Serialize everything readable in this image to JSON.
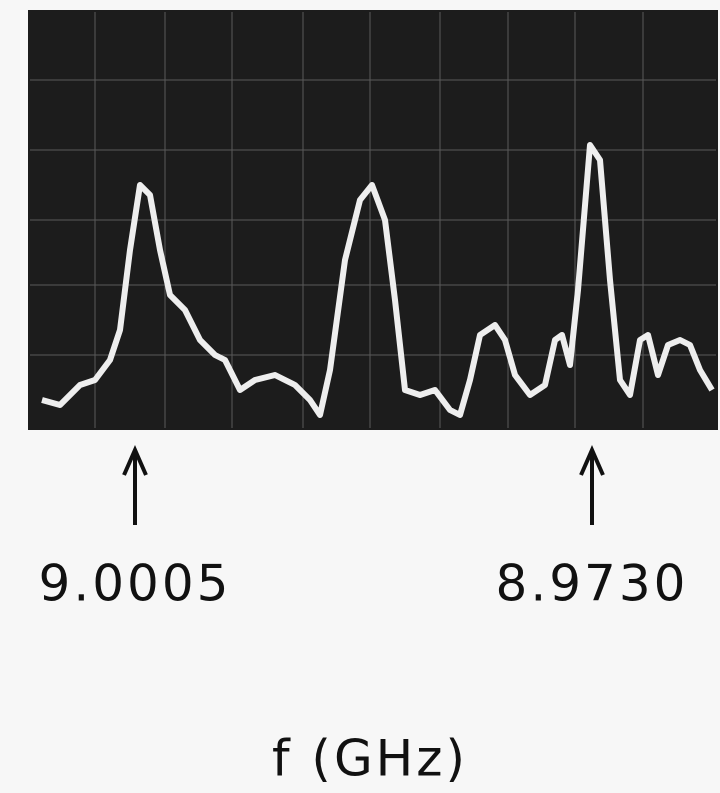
{
  "markers": [
    {
      "label": "9.0005"
    },
    {
      "label": "8.9730"
    }
  ],
  "axis_label": "f (GHz)"
}
